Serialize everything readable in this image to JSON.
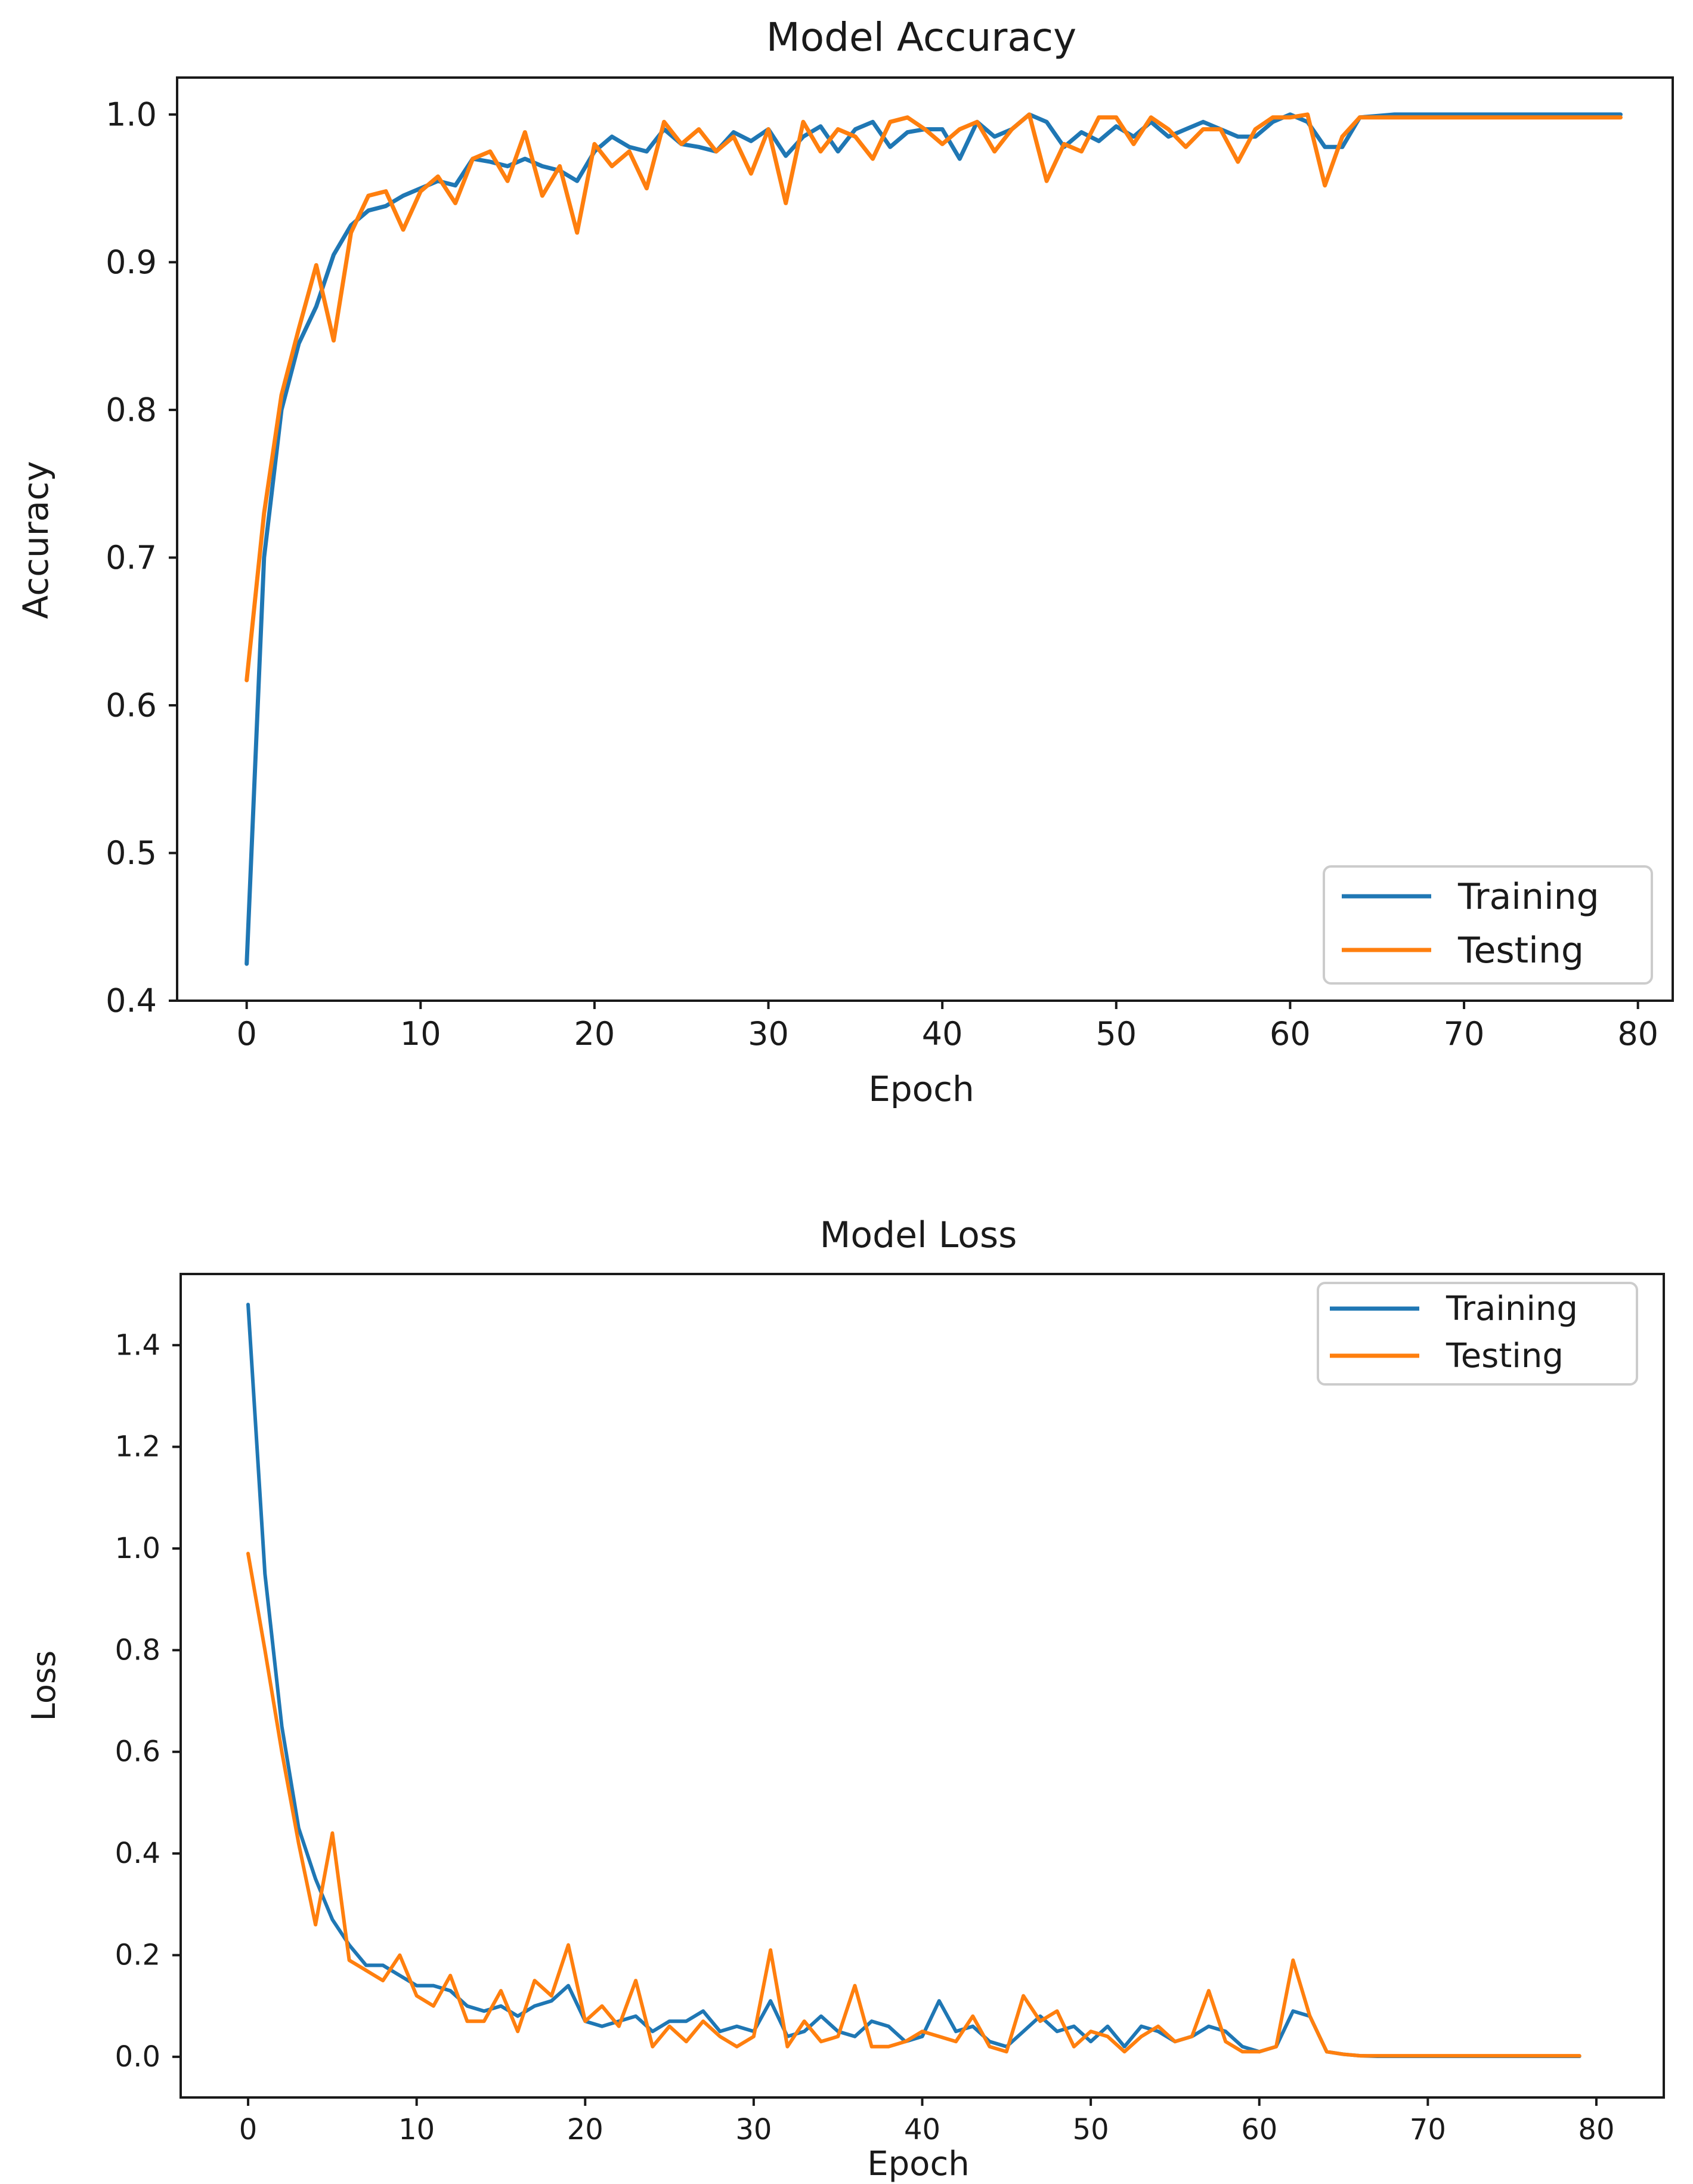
{
  "colors": {
    "training": "#1f77b4",
    "testing": "#ff7f0e"
  },
  "chart_data": [
    {
      "type": "line",
      "title": "Model Accuracy",
      "xlabel": "Epoch",
      "ylabel": "Accuracy",
      "xlim": [
        -4,
        82
      ],
      "ylim": [
        0.4,
        1.025
      ],
      "xticks": [
        0,
        10,
        20,
        30,
        40,
        50,
        60,
        70,
        80
      ],
      "yticks": [
        0.4,
        0.5,
        0.6,
        0.7,
        0.8,
        0.9,
        1.0
      ],
      "xtick_labels": [
        "0",
        "10",
        "20",
        "30",
        "40",
        "50",
        "60",
        "70",
        "80"
      ],
      "ytick_labels": [
        "0.4",
        "0.5",
        "0.6",
        "0.7",
        "0.8",
        "0.9",
        "1.0"
      ],
      "legend": {
        "position": "lower-right",
        "entries": [
          "Training",
          "Testing"
        ]
      },
      "series": [
        {
          "name": "Training",
          "color_key": "training",
          "x": [
            0,
            1,
            2,
            3,
            4,
            5,
            6,
            7,
            8,
            9,
            10,
            11,
            12,
            13,
            14,
            15,
            16,
            17,
            18,
            19,
            20,
            21,
            22,
            23,
            24,
            25,
            26,
            27,
            28,
            29,
            30,
            31,
            32,
            33,
            34,
            35,
            36,
            37,
            38,
            39,
            40,
            41,
            42,
            43,
            44,
            45,
            46,
            47,
            48,
            49,
            50,
            51,
            52,
            53,
            54,
            55,
            56,
            57,
            58,
            59,
            60,
            61,
            62,
            63,
            64,
            65,
            66,
            67,
            68,
            69,
            70,
            71,
            72,
            73,
            74,
            75,
            76,
            77,
            78,
            79
          ],
          "values": [
            0.425,
            0.7,
            0.8,
            0.845,
            0.87,
            0.905,
            0.925,
            0.935,
            0.938,
            0.945,
            0.95,
            0.955,
            0.952,
            0.97,
            0.968,
            0.965,
            0.97,
            0.965,
            0.962,
            0.955,
            0.975,
            0.985,
            0.978,
            0.975,
            0.99,
            0.98,
            0.978,
            0.975,
            0.988,
            0.982,
            0.99,
            0.972,
            0.985,
            0.992,
            0.975,
            0.99,
            0.995,
            0.978,
            0.988,
            0.99,
            0.99,
            0.97,
            0.995,
            0.985,
            0.99,
            1.0,
            0.995,
            0.978,
            0.988,
            0.982,
            0.992,
            0.985,
            0.995,
            0.985,
            0.99,
            0.995,
            0.99,
            0.985,
            0.985,
            0.995,
            1.0,
            0.995,
            0.978,
            0.978,
            0.998,
            0.999,
            1.0,
            1.0,
            1.0,
            1.0,
            1.0,
            1.0,
            1.0,
            1.0,
            1.0,
            1.0,
            1.0,
            1.0,
            1.0,
            1.0
          ]
        },
        {
          "name": "Testing",
          "color_key": "testing",
          "x": [
            0,
            1,
            2,
            3,
            4,
            5,
            6,
            7,
            8,
            9,
            10,
            11,
            12,
            13,
            14,
            15,
            16,
            17,
            18,
            19,
            20,
            21,
            22,
            23,
            24,
            25,
            26,
            27,
            28,
            29,
            30,
            31,
            32,
            33,
            34,
            35,
            36,
            37,
            38,
            39,
            40,
            41,
            42,
            43,
            44,
            45,
            46,
            47,
            48,
            49,
            50,
            51,
            52,
            53,
            54,
            55,
            56,
            57,
            58,
            59,
            60,
            61,
            62,
            63,
            64,
            65,
            66,
            67,
            68,
            69,
            70,
            71,
            72,
            73,
            74,
            75,
            76,
            77,
            78,
            79
          ],
          "values": [
            0.617,
            0.73,
            0.81,
            0.855,
            0.898,
            0.847,
            0.92,
            0.945,
            0.948,
            0.922,
            0.948,
            0.958,
            0.94,
            0.97,
            0.975,
            0.955,
            0.988,
            0.945,
            0.965,
            0.92,
            0.98,
            0.965,
            0.975,
            0.95,
            0.995,
            0.98,
            0.99,
            0.975,
            0.985,
            0.96,
            0.99,
            0.94,
            0.995,
            0.975,
            0.99,
            0.985,
            0.97,
            0.995,
            0.998,
            0.99,
            0.98,
            0.99,
            0.995,
            0.975,
            0.99,
            1.0,
            0.955,
            0.98,
            0.975,
            0.998,
            0.998,
            0.98,
            0.998,
            0.99,
            0.978,
            0.99,
            0.99,
            0.968,
            0.99,
            0.998,
            0.998,
            1.0,
            0.952,
            0.985,
            0.998,
            0.998,
            0.998,
            0.998,
            0.998,
            0.998,
            0.998,
            0.998,
            0.998,
            0.998,
            0.998,
            0.998,
            0.998,
            0.998,
            0.998,
            0.998
          ]
        }
      ]
    },
    {
      "type": "line",
      "title": "Model Loss",
      "xlabel": "Epoch",
      "ylabel": "Loss",
      "xlim": [
        -4,
        84
      ],
      "ylim": [
        -0.08,
        1.54
      ],
      "xticks": [
        0,
        10,
        20,
        30,
        40,
        50,
        60,
        70,
        80
      ],
      "yticks": [
        0.0,
        0.2,
        0.4,
        0.6,
        0.8,
        1.0,
        1.2,
        1.4
      ],
      "xtick_labels": [
        "0",
        "10",
        "20",
        "30",
        "40",
        "50",
        "60",
        "70",
        "80"
      ],
      "ytick_labels": [
        "0.0",
        "0.2",
        "0.4",
        "0.6",
        "0.8",
        "1.0",
        "1.2",
        "1.4"
      ],
      "legend": {
        "position": "top-right",
        "entries": [
          "Training",
          "Testing"
        ]
      },
      "series": [
        {
          "name": "Training",
          "color_key": "training",
          "x": [
            0,
            1,
            2,
            3,
            4,
            5,
            6,
            7,
            8,
            9,
            10,
            11,
            12,
            13,
            14,
            15,
            16,
            17,
            18,
            19,
            20,
            21,
            22,
            23,
            24,
            25,
            26,
            27,
            28,
            29,
            30,
            31,
            32,
            33,
            34,
            35,
            36,
            37,
            38,
            39,
            40,
            41,
            42,
            43,
            44,
            45,
            46,
            47,
            48,
            49,
            50,
            51,
            52,
            53,
            54,
            55,
            56,
            57,
            58,
            59,
            60,
            61,
            62,
            63,
            64,
            65,
            66,
            67,
            68,
            69,
            70,
            71,
            72,
            73,
            74,
            75,
            76,
            77,
            78,
            79
          ],
          "values": [
            1.48,
            0.95,
            0.65,
            0.45,
            0.35,
            0.27,
            0.22,
            0.18,
            0.18,
            0.16,
            0.14,
            0.14,
            0.13,
            0.1,
            0.09,
            0.1,
            0.08,
            0.1,
            0.11,
            0.14,
            0.07,
            0.06,
            0.07,
            0.08,
            0.05,
            0.07,
            0.07,
            0.09,
            0.05,
            0.06,
            0.05,
            0.11,
            0.04,
            0.05,
            0.08,
            0.05,
            0.04,
            0.07,
            0.06,
            0.03,
            0.04,
            0.11,
            0.05,
            0.06,
            0.03,
            0.02,
            0.05,
            0.08,
            0.05,
            0.06,
            0.03,
            0.06,
            0.02,
            0.06,
            0.05,
            0.03,
            0.04,
            0.06,
            0.05,
            0.02,
            0.01,
            0.02,
            0.09,
            0.08,
            0.01,
            0.005,
            0.002,
            0.001,
            0.001,
            0.001,
            0.001,
            0.001,
            0.001,
            0.001,
            0.001,
            0.001,
            0.001,
            0.001,
            0.001,
            0.001
          ]
        },
        {
          "name": "Testing",
          "color_key": "testing",
          "x": [
            0,
            1,
            2,
            3,
            4,
            5,
            6,
            7,
            8,
            9,
            10,
            11,
            12,
            13,
            14,
            15,
            16,
            17,
            18,
            19,
            20,
            21,
            22,
            23,
            24,
            25,
            26,
            27,
            28,
            29,
            30,
            31,
            32,
            33,
            34,
            35,
            36,
            37,
            38,
            39,
            40,
            41,
            42,
            43,
            44,
            45,
            46,
            47,
            48,
            49,
            50,
            51,
            52,
            53,
            54,
            55,
            56,
            57,
            58,
            59,
            60,
            61,
            62,
            63,
            64,
            65,
            66,
            67,
            68,
            69,
            70,
            71,
            72,
            73,
            74,
            75,
            76,
            77,
            78,
            79
          ],
          "values": [
            0.99,
            0.8,
            0.6,
            0.42,
            0.26,
            0.44,
            0.19,
            0.17,
            0.15,
            0.2,
            0.12,
            0.1,
            0.16,
            0.07,
            0.07,
            0.13,
            0.05,
            0.15,
            0.12,
            0.22,
            0.07,
            0.1,
            0.06,
            0.15,
            0.02,
            0.06,
            0.03,
            0.07,
            0.04,
            0.02,
            0.04,
            0.21,
            0.02,
            0.07,
            0.03,
            0.04,
            0.14,
            0.02,
            0.02,
            0.03,
            0.05,
            0.04,
            0.03,
            0.08,
            0.02,
            0.01,
            0.12,
            0.07,
            0.09,
            0.02,
            0.05,
            0.04,
            0.01,
            0.04,
            0.06,
            0.03,
            0.04,
            0.13,
            0.03,
            0.01,
            0.01,
            0.02,
            0.19,
            0.08,
            0.01,
            0.005,
            0.002,
            0.002,
            0.002,
            0.002,
            0.002,
            0.002,
            0.002,
            0.002,
            0.002,
            0.002,
            0.002,
            0.002,
            0.002,
            0.002
          ]
        }
      ]
    }
  ]
}
